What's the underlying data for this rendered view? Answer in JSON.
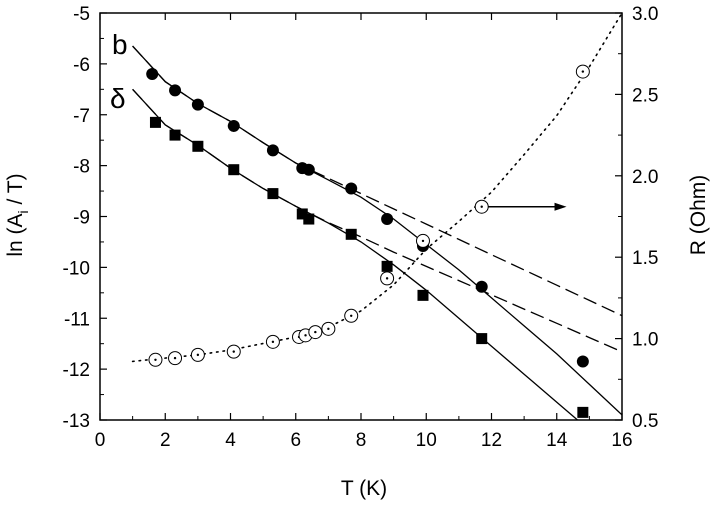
{
  "chart_data": {
    "type": "scatter",
    "title": "",
    "xlabel": "T (K)",
    "ylabel_main": "ln (A",
    "ylabel_sub": "i",
    "ylabel_tail": " / T)",
    "y2label": "R (Ohm)",
    "xlim": [
      0,
      16
    ],
    "ylim": [
      -13,
      -5
    ],
    "y2lim": [
      0.5,
      3.0
    ],
    "xticks": [
      "0",
      "2",
      "4",
      "6",
      "8",
      "10",
      "12",
      "14",
      "16"
    ],
    "yticks": [
      "-13",
      "-12",
      "-11",
      "-10",
      "-9",
      "-8",
      "-7",
      "-6",
      "-5"
    ],
    "y2ticks": [
      "0.5",
      "1.0",
      "1.5",
      "2.0",
      "2.5",
      "3.0"
    ],
    "grid": false,
    "series": [
      {
        "name": "b",
        "marker": "filled-circle",
        "axis": "left",
        "x": [
          1.6,
          2.3,
          3.0,
          4.1,
          5.3,
          6.2,
          6.4,
          7.7,
          8.8,
          9.9,
          11.7,
          14.8
        ],
        "y": [
          -6.2,
          -6.52,
          -6.8,
          -7.22,
          -7.7,
          -8.05,
          -8.08,
          -8.45,
          -9.05,
          -9.58,
          -10.38,
          -11.85
        ]
      },
      {
        "name": "δ",
        "marker": "filled-square",
        "axis": "left",
        "x": [
          1.7,
          2.3,
          3.0,
          4.1,
          5.3,
          6.2,
          6.4,
          7.7,
          8.8,
          9.9,
          11.7,
          14.8
        ],
        "y": [
          -7.15,
          -7.4,
          -7.62,
          -8.08,
          -8.55,
          -8.95,
          -9.05,
          -9.35,
          -9.98,
          -10.55,
          -11.4,
          -12.85
        ]
      },
      {
        "name": "R",
        "marker": "open-circle-dot",
        "axis": "right",
        "x": [
          1.7,
          2.3,
          3.0,
          4.1,
          5.3,
          6.1,
          6.3,
          6.6,
          7.0,
          7.7,
          8.8,
          9.9,
          11.7,
          14.8
        ],
        "y": [
          0.87,
          0.88,
          0.9,
          0.92,
          0.98,
          1.01,
          1.02,
          1.04,
          1.06,
          1.14,
          1.37,
          1.6,
          1.81,
          2.64
        ]
      }
    ],
    "fits": [
      {
        "series": "b",
        "style": "solid",
        "axis": "left",
        "x": [
          1.0,
          2,
          3,
          4,
          5,
          6,
          7,
          8,
          9,
          10,
          11,
          12,
          13,
          14,
          15,
          16
        ],
        "y": [
          -5.65,
          -6.35,
          -6.78,
          -7.13,
          -7.55,
          -7.95,
          -8.28,
          -8.62,
          -9.05,
          -9.55,
          -10.05,
          -10.6,
          -11.15,
          -11.7,
          -12.3,
          -12.9
        ]
      },
      {
        "series": "b",
        "style": "dashed",
        "axis": "left",
        "x": [
          1.0,
          2,
          3,
          4,
          5,
          6,
          7,
          8,
          9,
          10,
          11,
          12,
          13,
          14,
          15,
          16
        ],
        "y": [
          -5.65,
          -6.35,
          -6.78,
          -7.13,
          -7.55,
          -7.95,
          -8.25,
          -8.55,
          -8.85,
          -9.15,
          -9.45,
          -9.75,
          -10.05,
          -10.35,
          -10.65,
          -10.95
        ]
      },
      {
        "series": "δ",
        "style": "solid",
        "axis": "left",
        "x": [
          1.0,
          2,
          3,
          4,
          5,
          6,
          7,
          8,
          9,
          10,
          11,
          12,
          13,
          14,
          15,
          16
        ],
        "y": [
          -6.5,
          -7.2,
          -7.6,
          -8.05,
          -8.45,
          -8.8,
          -9.13,
          -9.5,
          -9.95,
          -10.45,
          -11.0,
          -11.55,
          -12.1,
          -12.65,
          -13.2,
          -13.75
        ]
      },
      {
        "series": "δ",
        "style": "dashed",
        "axis": "left",
        "x": [
          1.0,
          2,
          3,
          4,
          5,
          6,
          7,
          8,
          9,
          10,
          11,
          12,
          13,
          14,
          15,
          16
        ],
        "y": [
          -6.5,
          -7.2,
          -7.6,
          -8.05,
          -8.45,
          -8.8,
          -9.12,
          -9.4,
          -9.7,
          -9.98,
          -10.26,
          -10.54,
          -10.82,
          -11.1,
          -11.38,
          -11.66
        ]
      },
      {
        "series": "R",
        "style": "dotted",
        "axis": "right",
        "x": [
          1.0,
          2,
          3,
          4,
          5,
          6,
          7,
          8,
          9,
          10,
          11,
          12,
          13,
          14,
          15,
          16
        ],
        "y": [
          0.86,
          0.88,
          0.9,
          0.93,
          0.97,
          1.01,
          1.07,
          1.17,
          1.33,
          1.55,
          1.72,
          1.9,
          2.13,
          2.37,
          2.67,
          3.0
        ]
      }
    ],
    "annotations": [
      {
        "type": "arrow",
        "points_to": "right-axis",
        "from": [
          11.9,
          1.81
        ],
        "to": [
          14.3,
          1.81
        ]
      }
    ]
  }
}
